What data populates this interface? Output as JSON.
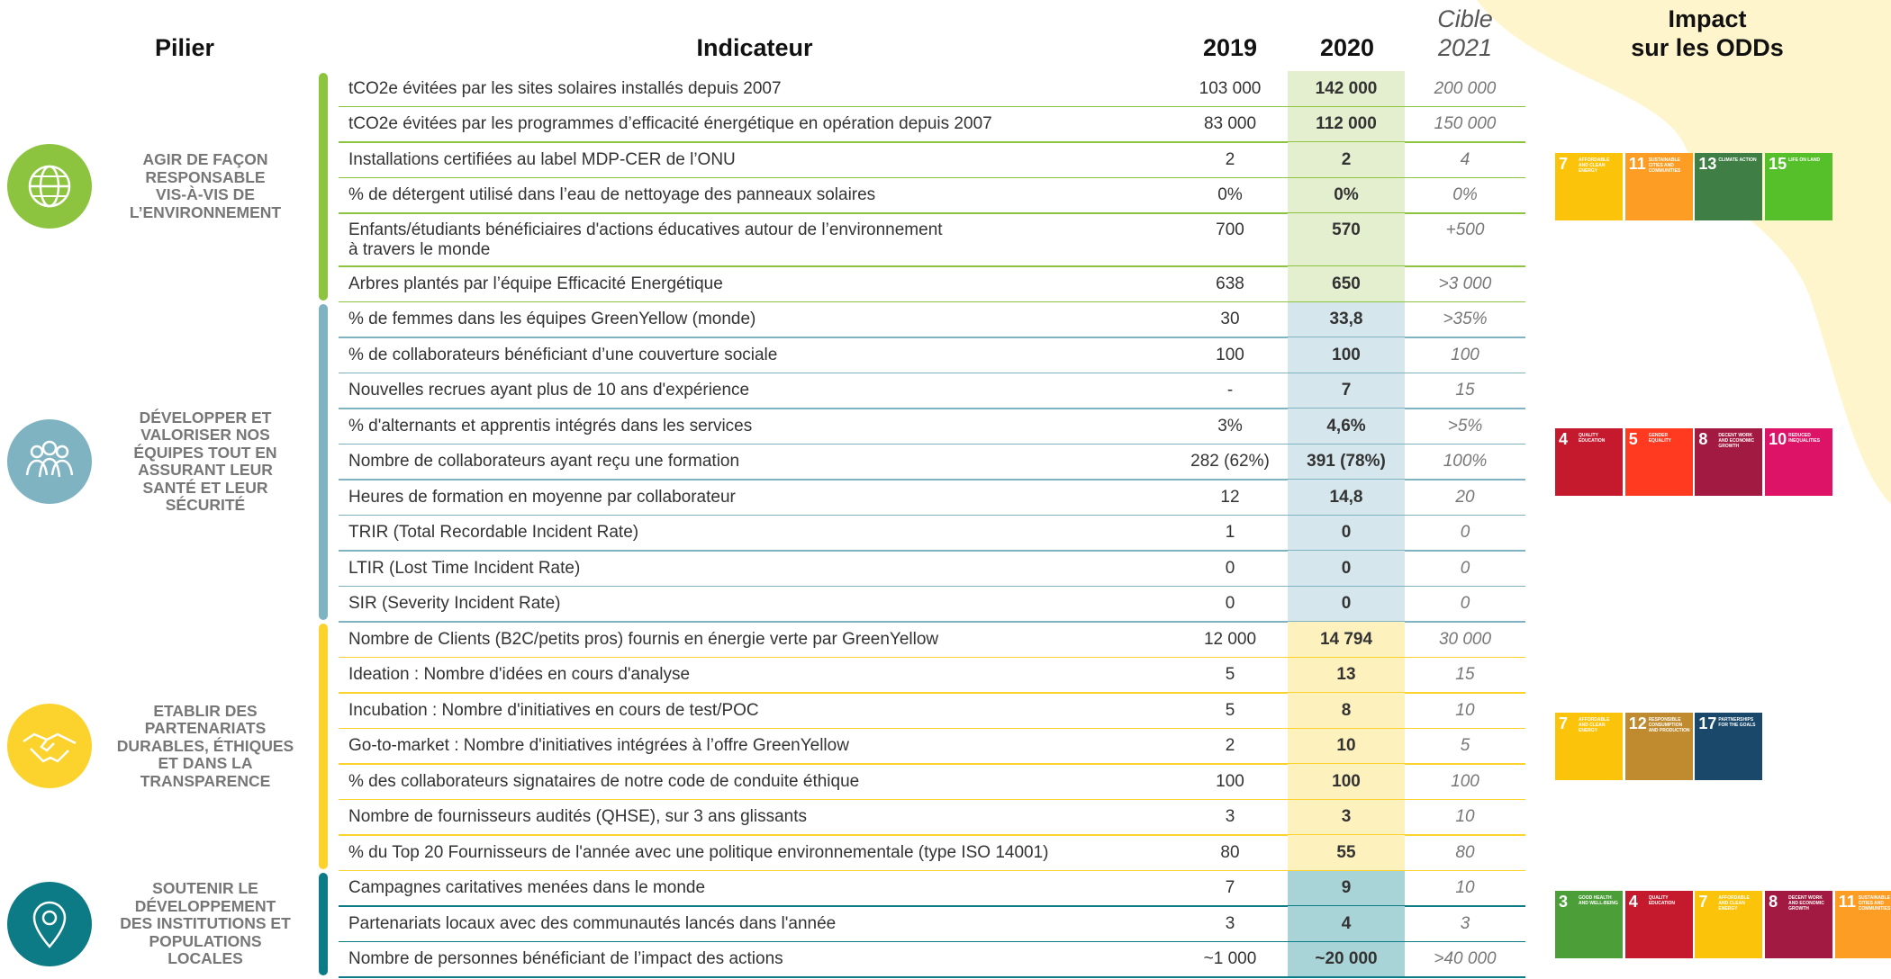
{
  "header": {
    "pillar": "Pilier",
    "indicator": "Indicateur",
    "y2019": "2019",
    "y2020": "2020",
    "target": [
      "Cible",
      "2021"
    ],
    "impact": [
      "Impact",
      "sur les ODDs"
    ]
  },
  "pillars": [
    {
      "label": [
        "AGIR DE FAÇON",
        "RESPONSABLE",
        "VIS-À-VIS DE",
        "L’ENVIRONNEMENT"
      ],
      "rows": [
        {
          "indicator": [
            "tCO2e évitées par les sites solaires installés depuis 2007"
          ],
          "v2019": "103 000",
          "v2020": "142 000",
          "target": "200 000"
        },
        {
          "indicator": [
            "tCO2e évitées par les programmes d’efficacité énergétique en opération depuis 2007"
          ],
          "v2019": "83 000",
          "v2020": "112 000",
          "target": "150 000"
        },
        {
          "indicator": [
            "Installations certifiées au label MDP-CER de l’ONU"
          ],
          "v2019": "2",
          "v2020": "2",
          "target": "4"
        },
        {
          "indicator": [
            "% de détergent utilisé dans l’eau de nettoyage des panneaux solaires"
          ],
          "v2019": "0%",
          "v2020": "0%",
          "target": "0%"
        },
        {
          "indicator": [
            "Enfants/étudiants bénéficiaires d'actions éducatives autour de l’environnement",
            "à travers le monde"
          ],
          "v2019": "700",
          "v2020": "570",
          "target": "+500"
        },
        {
          "indicator": [
            "Arbres plantés par l’équipe Efficacité Energétique"
          ],
          "v2019": "638",
          "v2020": "650",
          "target": ">3 000"
        }
      ],
      "sdgs": [
        {
          "number": "7",
          "name": "AFFORDABLE AND CLEAN ENERGY"
        },
        {
          "number": "11",
          "name": "SUSTAINABLE CITIES AND COMMUNITIES"
        },
        {
          "number": "13",
          "name": "CLIMATE ACTION"
        },
        {
          "number": "15",
          "name": "LIFE ON LAND"
        }
      ]
    },
    {
      "label": [
        "DÉVELOPPER ET",
        "VALORISER NOS",
        "ÉQUIPES TOUT EN",
        "ASSURANT LEUR",
        "SANTÉ ET LEUR",
        "SÉCURITÉ"
      ],
      "rows": [
        {
          "indicator": [
            "% de femmes dans les équipes GreenYellow (monde)"
          ],
          "v2019": "30",
          "v2020": "33,8",
          "target": ">35%"
        },
        {
          "indicator": [
            "% de collaborateurs bénéficiant d’une couverture sociale"
          ],
          "v2019": "100",
          "v2020": "100",
          "target": "100"
        },
        {
          "indicator": [
            "Nouvelles recrues ayant plus de 10 ans d'expérience"
          ],
          "v2019": "-",
          "v2020": "7",
          "target": "15"
        },
        {
          "indicator": [
            "% d'alternants et apprentis intégrés dans les services"
          ],
          "v2019": "3%",
          "v2020": "4,6%",
          "target": ">5%"
        },
        {
          "indicator": [
            "Nombre de collaborateurs ayant reçu une formation"
          ],
          "v2019": "282 (62%)",
          "v2020": "391 (78%)",
          "target": "100%"
        },
        {
          "indicator": [
            "Heures de formation en moyenne par collaborateur"
          ],
          "v2019": "12",
          "v2020": "14,8",
          "target": "20"
        },
        {
          "indicator": [
            "TRIR (Total Recordable Incident Rate)"
          ],
          "v2019": "1",
          "v2020": "0",
          "target": "0"
        },
        {
          "indicator": [
            "LTIR (Lost Time Incident Rate)"
          ],
          "v2019": "0",
          "v2020": "0",
          "target": "0"
        },
        {
          "indicator": [
            "SIR (Severity Incident Rate)"
          ],
          "v2019": "0",
          "v2020": "0",
          "target": "0"
        }
      ],
      "sdgs": [
        {
          "number": "4",
          "name": "QUALITY EDUCATION"
        },
        {
          "number": "5",
          "name": "GENDER EQUALITY"
        },
        {
          "number": "8",
          "name": "DECENT WORK AND ECONOMIC GROWTH"
        },
        {
          "number": "10",
          "name": "REDUCED INEQUALITIES"
        }
      ]
    },
    {
      "label": [
        "ETABLIR DES",
        "PARTENARIATS",
        "DURABLES, ÉTHIQUES",
        "ET DANS LA",
        "TRANSPARENCE"
      ],
      "rows": [
        {
          "indicator": [
            "Nombre de Clients (B2C/petits pros) fournis en énergie verte par GreenYellow"
          ],
          "v2019": "12 000",
          "v2020": "14 794",
          "target": "30 000"
        },
        {
          "indicator": [
            "Ideation : Nombre d'idées en cours d'analyse"
          ],
          "v2019": "5",
          "v2020": "13",
          "target": "15"
        },
        {
          "indicator": [
            "Incubation : Nombre d'initiatives en cours de test/POC"
          ],
          "v2019": "5",
          "v2020": "8",
          "target": "10"
        },
        {
          "indicator": [
            "Go-to-market : Nombre d'initiatives intégrées à l’offre GreenYellow"
          ],
          "v2019": "2",
          "v2020": "10",
          "target": "5"
        },
        {
          "indicator": [
            "% des collaborateurs signataires de notre code de conduite éthique"
          ],
          "v2019": "100",
          "v2020": "100",
          "target": "100"
        },
        {
          "indicator": [
            "Nombre de fournisseurs audités (QHSE), sur 3 ans glissants"
          ],
          "v2019": "3",
          "v2020": "3",
          "target": "10"
        },
        {
          "indicator": [
            "% du Top 20 Fournisseurs de l'année avec une politique environnementale (type ISO 14001)"
          ],
          "v2019": "80",
          "v2020": "55",
          "target": "80"
        }
      ],
      "sdgs": [
        {
          "number": "7",
          "name": "AFFORDABLE AND CLEAN ENERGY"
        },
        {
          "number": "12",
          "name": "RESPONSIBLE CONSUMPTION AND PRODUCTION"
        },
        {
          "number": "17",
          "name": "PARTNERSHIPS FOR THE GOALS"
        }
      ]
    },
    {
      "label": [
        "SOUTENIR LE",
        "DÉVELOPPEMENT",
        "DES INSTITUTIONS ET",
        "POPULATIONS",
        "LOCALES"
      ],
      "rows": [
        {
          "indicator": [
            "Campagnes caritatives menées  dans le monde"
          ],
          "v2019": "7",
          "v2020": "9",
          "target": "10"
        },
        {
          "indicator": [
            "Partenariats locaux avec des communautés lancés dans l'année"
          ],
          "v2019": "3",
          "v2020": "4",
          "target": "3"
        },
        {
          "indicator": [
            "Nombre de personnes bénéficiant de l’impact des actions"
          ],
          "v2019": "~1 000",
          "v2020": "~20 000",
          "target": ">40 000"
        }
      ],
      "sdgs": [
        {
          "number": "3",
          "name": "GOOD HEALTH AND WELL-BEING"
        },
        {
          "number": "4",
          "name": "QUALITY EDUCATION"
        },
        {
          "number": "7",
          "name": "AFFORDABLE AND CLEAN ENERGY"
        },
        {
          "number": "8",
          "name": "DECENT WORK AND ECONOMIC GROWTH"
        },
        {
          "number": "11",
          "name": "SUSTAINABLE CITIES AND COMMUNITIES"
        }
      ]
    }
  ]
}
